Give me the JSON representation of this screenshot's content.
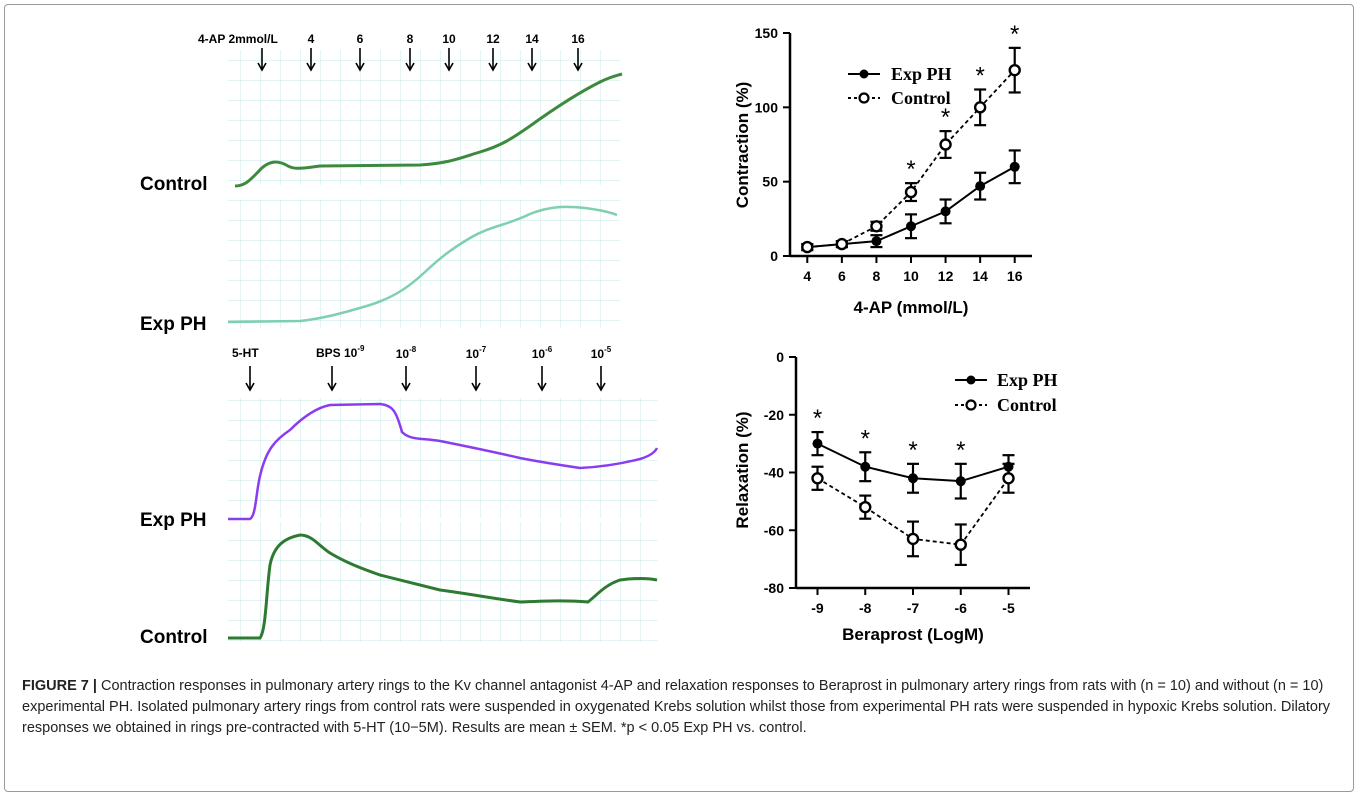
{
  "traces": {
    "top": {
      "agent_label": "4-AP 2mmol/L",
      "doses": [
        "4",
        "6",
        "8",
        "10",
        "12",
        "14",
        "16"
      ],
      "rows": [
        "Control",
        "Exp PH"
      ],
      "colors": {
        "control": "#3d8a3f",
        "exp_ph": "#7fd0b0"
      }
    },
    "bottom": {
      "agent_label": "5-HT",
      "bps_label": "BPS 10",
      "bps_exp": "-9",
      "doses": [
        {
          "base": "10",
          "exp": "-8"
        },
        {
          "base": "10",
          "exp": "-7"
        },
        {
          "base": "10",
          "exp": "-6"
        },
        {
          "base": "10",
          "exp": "-5"
        }
      ],
      "rows": [
        "Exp PH",
        "Control"
      ],
      "colors": {
        "exp_ph": "#8a3df0",
        "control": "#2f7a32"
      }
    },
    "grid_color": "#bfe6e6"
  },
  "chart_data": [
    {
      "type": "line",
      "xlabel": "4-AP (mmol/L)",
      "ylabel": "Contraction (%)",
      "x": [
        4,
        6,
        8,
        10,
        12,
        14,
        16
      ],
      "xlim": [
        3,
        17
      ],
      "ylim": [
        0,
        150
      ],
      "yticks": [
        0,
        50,
        100,
        150
      ],
      "legend_position": "top-left",
      "series": [
        {
          "name": "Exp PH",
          "style": "solid, filled circle",
          "values": [
            6,
            8,
            10,
            20,
            30,
            47,
            60
          ],
          "error": [
            2,
            2,
            4,
            8,
            8,
            9,
            11
          ]
        },
        {
          "name": "Control",
          "style": "dashed, open circle",
          "values": [
            6,
            8,
            20,
            43,
            75,
            100,
            125
          ],
          "error": [
            2,
            2,
            3,
            6,
            9,
            12,
            15
          ]
        }
      ],
      "significance": {
        "symbol": "*",
        "x": [
          10,
          12,
          14,
          16
        ]
      }
    },
    {
      "type": "line",
      "xlabel": "Beraprost (LogM)",
      "ylabel": "Relaxation (%)",
      "x": [
        -9,
        -8,
        -7,
        -6,
        -5
      ],
      "xlim": [
        -9.45,
        -4.55
      ],
      "ylim": [
        -80,
        0
      ],
      "yticks": [
        0,
        -20,
        -40,
        -60,
        -80
      ],
      "legend_position": "top-center",
      "series": [
        {
          "name": "Exp PH",
          "style": "solid, filled circle",
          "values": [
            -30,
            -38,
            -42,
            -43,
            -38
          ],
          "error": [
            4,
            5,
            5,
            6,
            4
          ]
        },
        {
          "name": "Control",
          "style": "dashed, open circle",
          "values": [
            -42,
            -52,
            -63,
            -65,
            -42
          ],
          "error": [
            4,
            4,
            6,
            7,
            5
          ]
        }
      ],
      "significance": {
        "symbol": "*",
        "x": [
          -9,
          -8,
          -7,
          -6
        ]
      }
    }
  ],
  "caption": {
    "figure_label": "FIGURE 7 |",
    "text": "Contraction responses in pulmonary artery rings to the Kv channel antagonist 4-AP and relaxation responses to Beraprost in pulmonary artery rings from rats with (n = 10) and without (n = 10) experimental PH. Isolated pulmonary artery rings from control rats were suspended in oxygenated Krebs solution whilst those from experimental PH rats were suspended in hypoxic Krebs solution. Dilatory responses we obtained in rings pre-contracted with 5-HT (10−5M). Results are mean ± SEM. *p < 0.05 Exp PH vs. control."
  }
}
